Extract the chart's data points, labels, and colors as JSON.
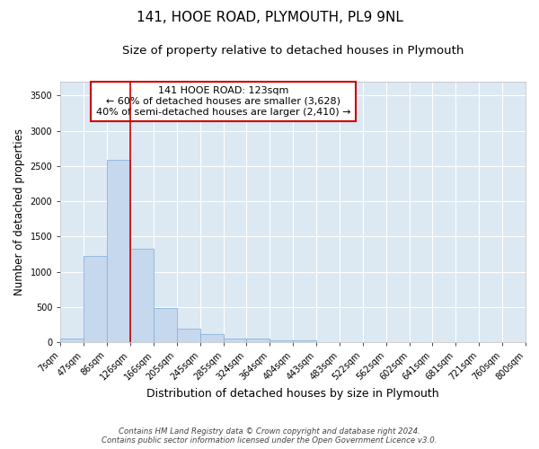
{
  "title": "141, HOOE ROAD, PLYMOUTH, PL9 9NL",
  "subtitle": "Size of property relative to detached houses in Plymouth",
  "xlabel": "Distribution of detached houses by size in Plymouth",
  "ylabel": "Number of detached properties",
  "bin_edges": [
    7,
    47,
    86,
    126,
    166,
    205,
    245,
    285,
    324,
    364,
    404,
    443,
    483,
    522,
    562,
    602,
    641,
    681,
    721,
    760,
    800
  ],
  "bar_heights": [
    50,
    1220,
    2580,
    1330,
    490,
    195,
    110,
    50,
    50,
    30,
    30,
    0,
    0,
    0,
    0,
    0,
    0,
    0,
    0,
    0
  ],
  "bar_color": "#c5d8ee",
  "bar_edgecolor": "#8ab4d8",
  "bar_linewidth": 0.6,
  "vline_x": 126,
  "vline_color": "#cc0000",
  "vline_linewidth": 1.2,
  "ylim": [
    0,
    3700
  ],
  "yticks": [
    0,
    500,
    1000,
    1500,
    2000,
    2500,
    3000,
    3500
  ],
  "annotation_text": "141 HOOE ROAD: 123sqm\n← 60% of detached houses are smaller (3,628)\n40% of semi-detached houses are larger (2,410) →",
  "background_color": "#dce8f2",
  "plot_bg_color": "#dce8f2",
  "grid_color": "#ffffff",
  "footer_line1": "Contains HM Land Registry data © Crown copyright and database right 2024.",
  "footer_line2": "Contains public sector information licensed under the Open Government Licence v3.0.",
  "title_fontsize": 11,
  "subtitle_fontsize": 9.5,
  "ylabel_fontsize": 8.5,
  "xlabel_fontsize": 9,
  "tick_labelsize": 7,
  "annotation_fontsize": 8
}
